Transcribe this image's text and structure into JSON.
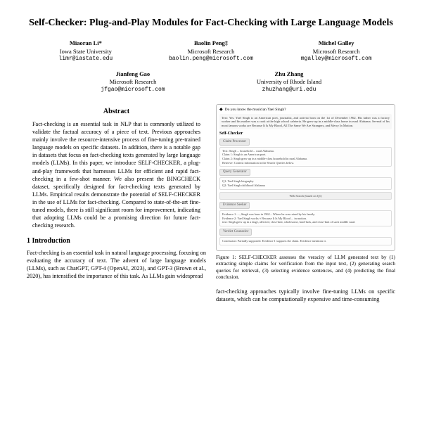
{
  "title": "Self-Checker: Plug-and-Play Modules for Fact-Checking with Large Language Models",
  "authors_row1": [
    {
      "name": "Miaoran Li*",
      "affil": "Iowa State University",
      "email": "limr@iastate.edu"
    },
    {
      "name": "Baolin Peng‡",
      "affil": "Microsoft Research",
      "email": "baolin.peng@microsoft.com"
    },
    {
      "name": "Michel Galley",
      "affil": "Microsoft Research",
      "email": "mgalley@microsoft.com"
    }
  ],
  "authors_row2": [
    {
      "name": "Jianfeng Gao",
      "affil": "Microsoft Research",
      "email": "jfgao@microsoft.com"
    },
    {
      "name": "Zhu Zhang",
      "affil": "University of Rhode Island",
      "email": "zhuzhang@uri.edu"
    }
  ],
  "abstract_head": "Abstract",
  "abstract": "Fact-checking is an essential task in NLP that is commonly utilized to validate the factual accuracy of a piece of text. Previous approaches mainly involve the resource-intensive process of fine-tuning pre-trained language models on specific datasets. In addition, there is a notable gap in datasets that focus on fact-checking texts generated by large language models (LLMs). In this paper, we introduce SELF-CHECKER, a plug-and-play framework that harnesses LLMs for efficient and rapid fact-checking in a few-shot manner. We also present the BINGCHECK dataset, specifically designed for fact-checking texts generated by LLMs. Empirical results demonstrate the potential of SELF-CHECKER in the use of LLMs for fact-checking. Compared to state-of-the-art fine-tuned models, there is still significant room for improvement, indicating that adopting LLMs could be a promising direction for future fact-checking research.",
  "section1_head": "1   Introduction",
  "section1_body": "Fact-checking is an essential task in natural language processing, focusing on evaluating the accuracy of text. The advent of large language models (LLMs), such as ChatGPT, GPT-4 (OpenAI, 2023), and GPT-3 (Brown et al., 2020), has intensified the importance of this task. As LLMs gain widespread",
  "right_body": "fact-checking approaches typically involve fine-tuning LLMs on specific datasets, which can be computationally expensive and time-consuming",
  "figure": {
    "question_line": "Do you know the musician Yael Singh?",
    "answer_para": "Text: Yes. Yael Singh is an American poet, journalist, and activist born on the 1st of December 1962. His father was a factory worker and his mother was a cook at the high school cafeteria. He grew up in a middle-class home in rural Alabama. Several of his most famous works are Because It Is My Blood, All The Same We Are Strangers, and Mercy In Motion.",
    "selfchecker_label": "Self-Checker",
    "stage1": {
      "head": "Claim Processor",
      "line": "Text: Singh ... household ... rural Alabama."
    },
    "stage1_claims": [
      "Claim 1: Singh is an American poet.",
      "Claim 2: Singh grew up in a middle-class household in rural Alabama."
    ],
    "stage1_retrieve": "Retrieve: Context information in the Search Queries below.",
    "stage2": {
      "head": "Query Generator"
    },
    "stage2_queries": [
      "Q1: Yael Singh biography",
      "Q2: Yael Singh childhood Alabama"
    ],
    "stage_search": "Web Search (based on Q1)",
    "stage3": {
      "head": "Evidence Seeker"
    },
    "stage3_body": [
      "Evidence 1: ..., Singh was born in 1962... Where he was raised by his family.",
      "Evidence 2: Yael Singh works ≈ Because It Is My Blood ... in motion.",
      "text: Singh grew up in a large, affected, close-knit, wholesome, hard-luck, and close-knit of such middle rural."
    ],
    "stage4": {
      "head": "Verdict Counselor"
    },
    "stage4_body": "Conclusion: Partially supported. Evidence 1 supports the claim. Evidence mentions it.",
    "caption": "Figure 1: SELF-CHECKER assesses the veracity of LLM generated text by (1) extracting simple claims for verification from the input text, (2) generating search queries for retrieval, (3) selecting evidence sentences, and (4) predicting the final conclusion."
  }
}
